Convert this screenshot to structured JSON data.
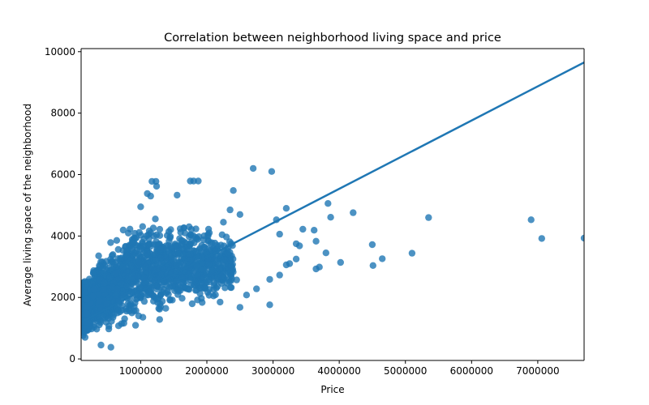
{
  "chart_data": {
    "type": "scatter",
    "title": "Correlation between neighborhood living space and price",
    "xlabel": "Price",
    "ylabel": "Average living space of the neighborhood",
    "xlim": [
      100000,
      7700000
    ],
    "ylim": [
      -50,
      10100
    ],
    "x_ticks": [
      1000000,
      2000000,
      3000000,
      4000000,
      5000000,
      6000000,
      7000000
    ],
    "x_tick_labels": [
      "1000000",
      "2000000",
      "3000000",
      "4000000",
      "5000000",
      "6000000",
      "7000000"
    ],
    "y_ticks": [
      0,
      2000,
      4000,
      6000,
      8000,
      10000
    ],
    "y_tick_labels": [
      "0",
      "2000",
      "4000",
      "6000",
      "8000",
      "10000"
    ],
    "grid": false,
    "legend": "none",
    "color": "#1f77b4",
    "regression_line": {
      "x": [
        100000,
        7700000
      ],
      "y": [
        1200,
        9650
      ]
    },
    "outliers": [
      {
        "x": 2700000,
        "y": 6200
      },
      {
        "x": 2980000,
        "y": 6100
      },
      {
        "x": 1170000,
        "y": 5780
      },
      {
        "x": 1230000,
        "y": 5780
      },
      {
        "x": 1750000,
        "y": 5790
      },
      {
        "x": 1800000,
        "y": 5790
      },
      {
        "x": 1870000,
        "y": 5790
      },
      {
        "x": 1240000,
        "y": 5620
      },
      {
        "x": 1550000,
        "y": 5330
      },
      {
        "x": 2400000,
        "y": 5480
      },
      {
        "x": 3200000,
        "y": 4900
      },
      {
        "x": 3830000,
        "y": 5060
      },
      {
        "x": 4210000,
        "y": 4760
      },
      {
        "x": 3870000,
        "y": 4610
      },
      {
        "x": 5350000,
        "y": 4600
      },
      {
        "x": 6900000,
        "y": 4530
      },
      {
        "x": 7060000,
        "y": 3920
      },
      {
        "x": 7700000,
        "y": 3930
      },
      {
        "x": 4500000,
        "y": 3720
      },
      {
        "x": 4650000,
        "y": 3260
      },
      {
        "x": 5100000,
        "y": 3440
      },
      {
        "x": 4510000,
        "y": 3040
      },
      {
        "x": 4020000,
        "y": 3140
      },
      {
        "x": 3700000,
        "y": 2990
      },
      {
        "x": 3650000,
        "y": 2930
      },
      {
        "x": 3800000,
        "y": 3450
      },
      {
        "x": 3650000,
        "y": 3830
      },
      {
        "x": 3620000,
        "y": 4190
      },
      {
        "x": 3450000,
        "y": 4220
      },
      {
        "x": 3350000,
        "y": 3750
      },
      {
        "x": 3400000,
        "y": 3680
      },
      {
        "x": 3100000,
        "y": 4060
      },
      {
        "x": 3050000,
        "y": 4530
      },
      {
        "x": 2950000,
        "y": 1760
      },
      {
        "x": 2500000,
        "y": 1680
      },
      {
        "x": 2450000,
        "y": 2570
      },
      {
        "x": 2600000,
        "y": 2080
      },
      {
        "x": 2750000,
        "y": 2280
      },
      {
        "x": 2950000,
        "y": 2590
      },
      {
        "x": 3100000,
        "y": 2730
      },
      {
        "x": 3350000,
        "y": 3250
      },
      {
        "x": 3200000,
        "y": 3060
      },
      {
        "x": 3250000,
        "y": 3100
      },
      {
        "x": 2200000,
        "y": 1850
      },
      {
        "x": 2100000,
        "y": 2050
      },
      {
        "x": 2350000,
        "y": 4850
      },
      {
        "x": 2500000,
        "y": 4700
      },
      {
        "x": 2250000,
        "y": 4450
      },
      {
        "x": 550000,
        "y": 380
      },
      {
        "x": 400000,
        "y": 450
      },
      {
        "x": 1000000,
        "y": 4950
      },
      {
        "x": 1100000,
        "y": 5380
      },
      {
        "x": 1150000,
        "y": 5300
      }
    ],
    "cluster": {
      "x_range": [
        130000,
        2400000
      ],
      "band": [
        [
          130000,
          600,
          2600
        ],
        [
          400000,
          600,
          3600
        ],
        [
          700000,
          800,
          4400
        ],
        [
          1000000,
          1000,
          4900
        ],
        [
          1500000,
          1300,
          4800
        ],
        [
          2000000,
          1600,
          4400
        ],
        [
          2400000,
          2000,
          4200
        ]
      ],
      "count": 1800,
      "seed": 7
    }
  }
}
